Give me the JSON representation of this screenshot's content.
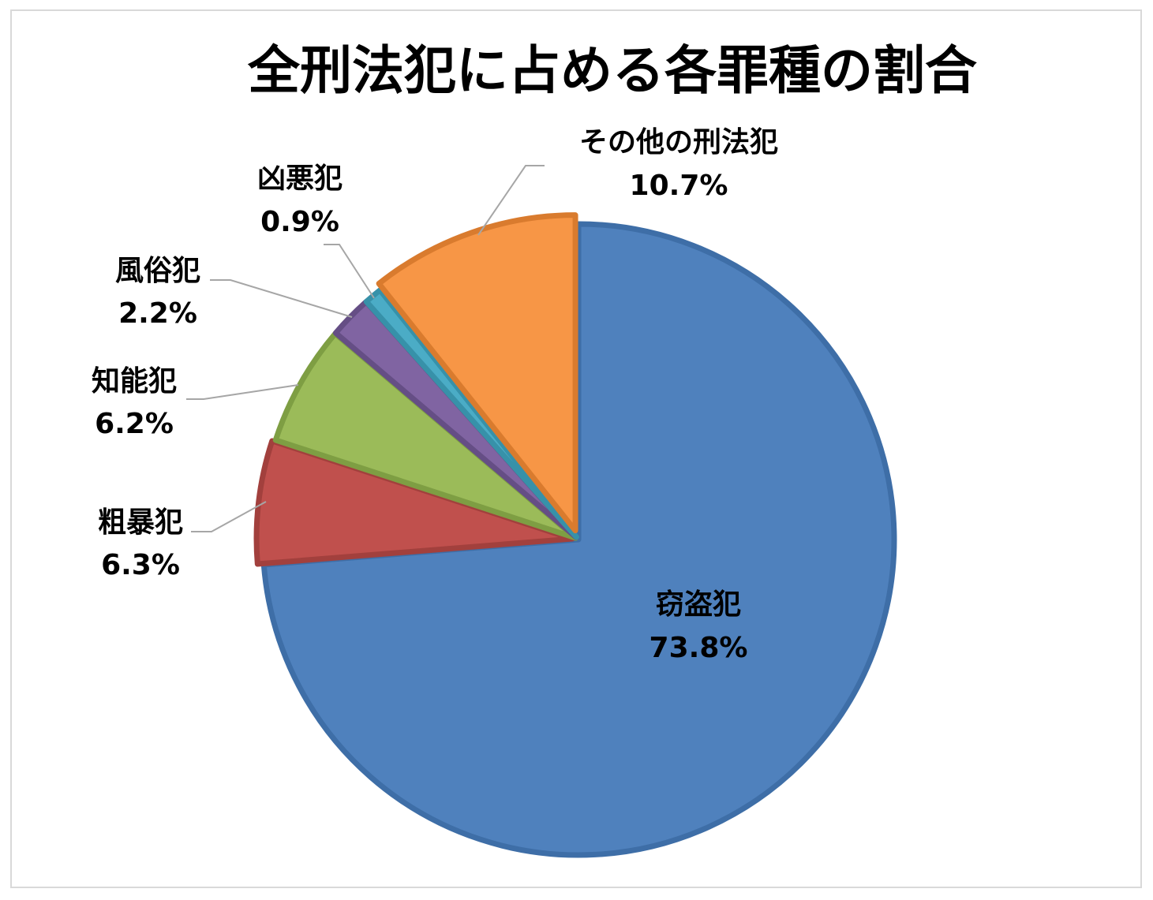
{
  "chart_data": {
    "type": "pie",
    "title": "全刑法犯に占める各罪種の割合",
    "slices": [
      {
        "name": "窃盗犯",
        "value": 73.8,
        "label": "73.8%",
        "color": "#4F81BD",
        "edge": "#3E6EA7"
      },
      {
        "name": "粗暴犯",
        "value": 6.3,
        "label": "6.3%",
        "color": "#C0504D",
        "edge": "#A2403D"
      },
      {
        "name": "知能犯",
        "value": 6.2,
        "label": "6.2%",
        "color": "#9BBB59",
        "edge": "#7E9E43"
      },
      {
        "name": "風俗犯",
        "value": 2.2,
        "label": "2.2%",
        "color": "#8064A2",
        "edge": "#654E85"
      },
      {
        "name": "凶悪犯",
        "value": 0.9,
        "label": "0.9%",
        "color": "#4BACC6",
        "edge": "#3791A9"
      },
      {
        "name": "その他の刑法犯",
        "value": 10.7,
        "label": "10.7%",
        "color": "#F79646",
        "edge": "#D97B2E"
      }
    ],
    "leader_line_color": "#a6a6a6"
  }
}
